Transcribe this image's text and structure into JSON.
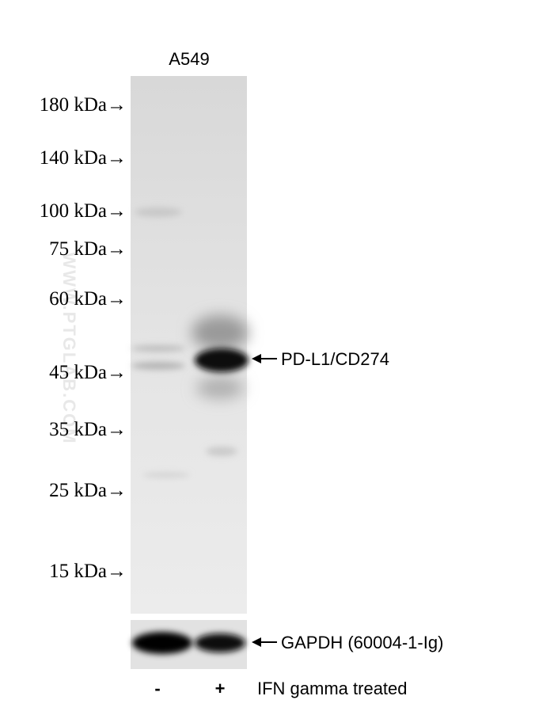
{
  "watermark": "WWW.PTGLAB.COM",
  "sample": "A549",
  "markers": [
    "180 kDa→",
    "140 kDa→",
    "100 kDa→",
    "75 kDa→",
    "60 kDa→",
    "45 kDa→",
    "35 kDa→",
    "25 kDa→",
    "15 kDa→"
  ],
  "target_label": "PD-L1/CD274",
  "control_label": "GAPDH (60004-1-Ig)",
  "lanes": [
    "-",
    "+"
  ],
  "treatment": "IFN gamma treated"
}
